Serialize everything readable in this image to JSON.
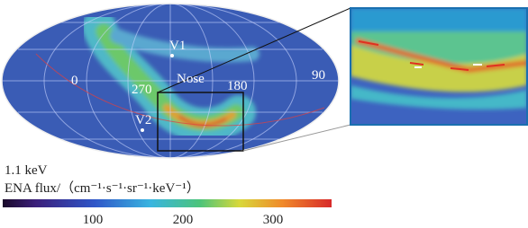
{
  "map": {
    "labels": {
      "v1": "V1",
      "nose": "Nose",
      "lon0": "0",
      "lon270": "270",
      "lon180": "180",
      "lon90": "90",
      "v2": "V2"
    }
  },
  "colorbar": {
    "energy": "1.1 keV",
    "title": "ENA flux/（cm⁻¹·s⁻¹·sr⁻¹·keV⁻¹）",
    "lim": [
      0,
      365
    ],
    "ticks": [
      100,
      200,
      300
    ]
  }
}
